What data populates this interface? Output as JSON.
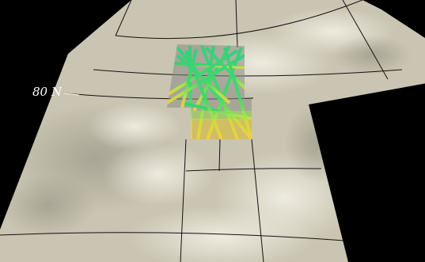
{
  "map": {
    "latitude_label": "80 N",
    "colors": {
      "background": "#000000",
      "terrain": "#c9c5b2",
      "gridline": "#111111",
      "label": "#ffffff",
      "data_low": "#2fd27a",
      "data_mid": "#a8e84a",
      "data_high": "#f2d13a"
    }
  }
}
